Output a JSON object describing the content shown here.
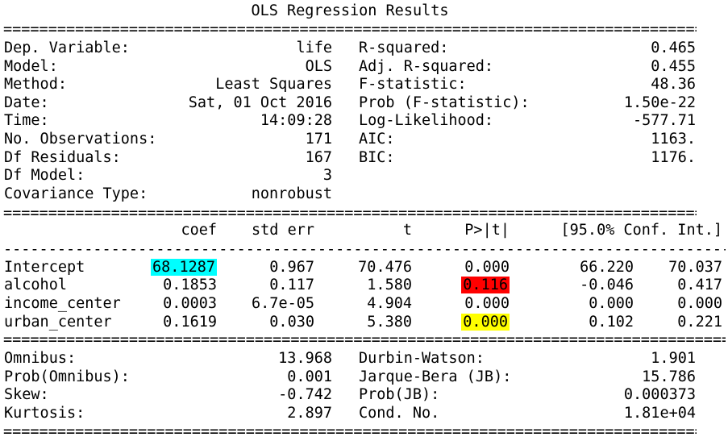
{
  "title": "OLS Regression Results",
  "rules": {
    "double": "==============================================================================",
    "double_wide": "=================================================================================",
    "single": "---------------------------------------------------------------------------------"
  },
  "summary_left": [
    {
      "label": "Dep. Variable:",
      "value": "life"
    },
    {
      "label": "Model:",
      "value": "OLS"
    },
    {
      "label": "Method:",
      "value": "Least Squares"
    },
    {
      "label": "Date:",
      "value": "Sat, 01 Oct 2016"
    },
    {
      "label": "Time:",
      "value": "14:09:28"
    },
    {
      "label": "No. Observations:",
      "value": "171"
    },
    {
      "label": "Df Residuals:",
      "value": "167"
    },
    {
      "label": "Df Model:",
      "value": "3"
    },
    {
      "label": "Covariance Type:",
      "value": "nonrobust"
    }
  ],
  "summary_right": [
    {
      "label": "R-squared:",
      "value": "0.465"
    },
    {
      "label": "Adj. R-squared:",
      "value": "0.455"
    },
    {
      "label": "F-statistic:",
      "value": "48.36"
    },
    {
      "label": "Prob (F-statistic):",
      "value": "1.50e-22"
    },
    {
      "label": "Log-Likelihood:",
      "value": "-577.71"
    },
    {
      "label": "AIC:",
      "value": "1163."
    },
    {
      "label": "BIC:",
      "value": "1176."
    }
  ],
  "coef_headers": [
    "coef",
    "std err",
    "t",
    "P>|t|",
    "[95.0% Conf. Int.]"
  ],
  "coef_rows": [
    {
      "name": "Intercept",
      "coef": "68.1287",
      "std_err": "0.967",
      "t": "70.476",
      "p": "0.000",
      "ci_low": "66.220",
      "ci_high": "70.037"
    },
    {
      "name": "alcohol",
      "coef": "0.1853",
      "std_err": "0.117",
      "t": "1.580",
      "p": "0.116",
      "ci_low": "-0.046",
      "ci_high": "0.417"
    },
    {
      "name": "income_center",
      "coef": "0.0003",
      "std_err": "6.7e-05",
      "t": "4.904",
      "p": "0.000",
      "ci_low": "0.000",
      "ci_high": "0.000"
    },
    {
      "name": "urban_center",
      "coef": "0.1619",
      "std_err": "0.030",
      "t": "5.380",
      "p": "0.000",
      "ci_low": "0.102",
      "ci_high": "0.221"
    }
  ],
  "highlights": {
    "intercept_coef": "#00ffff",
    "alcohol_p": "#ff0000",
    "urban_center_p": "#ffff00"
  },
  "diag_left": [
    {
      "label": "Omnibus:",
      "value": "13.968"
    },
    {
      "label": "Prob(Omnibus):",
      "value": "0.001"
    },
    {
      "label": "Skew:",
      "value": "-0.742"
    },
    {
      "label": "Kurtosis:",
      "value": "2.897"
    }
  ],
  "diag_right": [
    {
      "label": "Durbin-Watson:",
      "value": "1.901"
    },
    {
      "label": "Jarque-Bera (JB):",
      "value": "15.786"
    },
    {
      "label": "Prob(JB):",
      "value": "0.000373"
    },
    {
      "label": "Cond. No.",
      "value": "1.81e+04"
    }
  ]
}
